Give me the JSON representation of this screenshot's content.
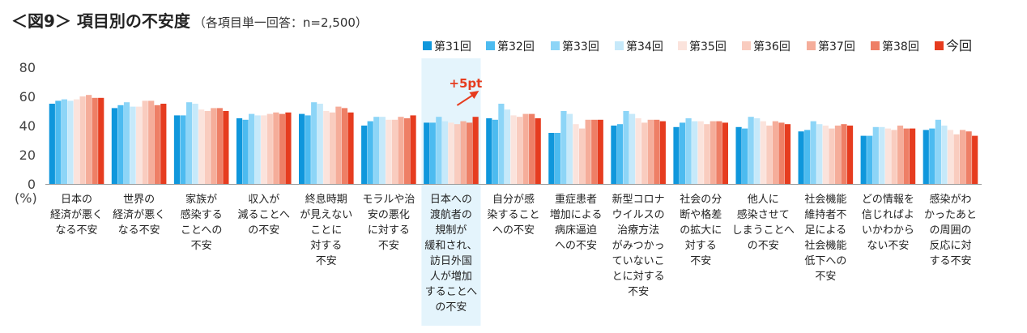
{
  "title": {
    "main": "＜図9＞ 項目別の不安度",
    "sub": "（各項目単一回答：n=2,500）"
  },
  "chart_data": {
    "type": "bar",
    "ylabel": "(%)",
    "ylim": [
      0,
      80
    ],
    "yticks": [
      0,
      20,
      40,
      60,
      80
    ],
    "grid": false,
    "legend_position": "top-right",
    "series": [
      {
        "name": "第31回",
        "color": "#0f97dc",
        "values": [
          55,
          52,
          47,
          45,
          48,
          40,
          42,
          45,
          35,
          40,
          39,
          39,
          36,
          33,
          37
        ]
      },
      {
        "name": "第32回",
        "color": "#4cbbf0",
        "values": [
          57,
          54,
          47,
          44,
          47,
          43,
          42,
          44,
          35,
          41,
          42,
          38,
          37,
          33,
          38
        ]
      },
      {
        "name": "第33回",
        "color": "#8dd5f7",
        "values": [
          58,
          56,
          56,
          48,
          56,
          46,
          46,
          55,
          50,
          50,
          45,
          46,
          43,
          39,
          44
        ]
      },
      {
        "name": "第34回",
        "color": "#c6e9fa",
        "values": [
          57,
          53,
          55,
          47,
          55,
          46,
          43,
          51,
          48,
          48,
          43,
          45,
          41,
          39,
          40
        ]
      },
      {
        "name": "第35回",
        "color": "#fbe3dc",
        "values": [
          58,
          53,
          51,
          47,
          50,
          44,
          42,
          47,
          41,
          45,
          43,
          43,
          40,
          38,
          37
        ]
      },
      {
        "name": "第36回",
        "color": "#f9ccbf",
        "values": [
          60,
          57,
          50,
          48,
          49,
          44,
          41,
          46,
          38,
          42,
          41,
          40,
          38,
          37,
          34
        ]
      },
      {
        "name": "第37回",
        "color": "#f5ad9a",
        "values": [
          61,
          57,
          52,
          49,
          53,
          46,
          43,
          48,
          44,
          44,
          43,
          43,
          40,
          40,
          37
        ]
      },
      {
        "name": "第38回",
        "color": "#ee7f66",
        "values": [
          59,
          54,
          52,
          48,
          52,
          45,
          42,
          48,
          44,
          44,
          43,
          42,
          41,
          38,
          36
        ]
      },
      {
        "name": "今回",
        "color": "#e63c1f",
        "values": [
          59,
          55,
          50,
          49,
          49,
          47,
          46,
          45,
          44,
          43,
          42,
          41,
          40,
          38,
          33
        ]
      }
    ],
    "categories": [
      [
        "日本の",
        "経済が悪く",
        "なる不安"
      ],
      [
        "世界の",
        "経済が悪く",
        "なる不安"
      ],
      [
        "家族が",
        "感染する",
        "ことへの",
        "不安"
      ],
      [
        "収入が",
        "減ることへ",
        "の不安"
      ],
      [
        "終息時期",
        "が見えない",
        "ことに",
        "対する",
        "不安"
      ],
      [
        "モラルや治",
        "安の悪化",
        "に対する",
        "不安"
      ],
      [
        "日本への",
        "渡航者の",
        "規制が",
        "緩和され、",
        "訪日外国",
        "人が増加",
        "することへ",
        "の不安"
      ],
      [
        "自分が感",
        "染すること",
        "への不安"
      ],
      [
        "重症患者",
        "増加による",
        "病床逼迫",
        "への不安"
      ],
      [
        "新型コロナ",
        "ウイルスの",
        "治療方法",
        "がみつかっ",
        "ていないこ",
        "とに対する",
        "不安"
      ],
      [
        "社会の分",
        "断や格差",
        "の拡大に",
        "対する",
        "不安"
      ],
      [
        "他人に",
        "感染させて",
        "しまうことへ",
        "の不安"
      ],
      [
        "社会機能",
        "維持者不",
        "足による",
        "社会機能",
        "低下への",
        "不安"
      ],
      [
        "どの情報を",
        "信じればよ",
        "いかわから",
        "ない不安"
      ],
      [
        "感染がわ",
        "かったあと",
        "の周囲の",
        "反応に対",
        "する不安"
      ]
    ],
    "highlight_category_index": 6,
    "annotation": {
      "text": "+5pt",
      "category_index": 6
    }
  }
}
